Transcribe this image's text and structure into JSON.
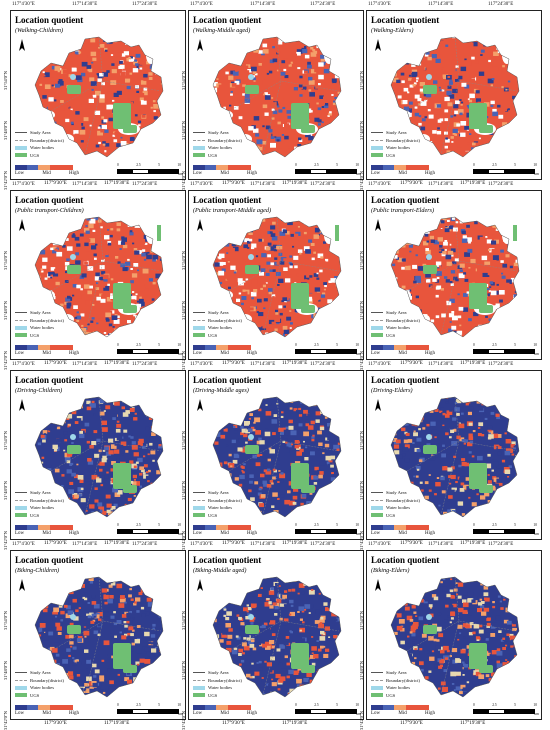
{
  "main_title": "Location quotient",
  "panels": [
    {
      "subtitle": "(Walking-Children)",
      "variant": "walk"
    },
    {
      "subtitle": "(Walking-Middle aged)",
      "variant": "walk"
    },
    {
      "subtitle": "(Walking-Elders)",
      "variant": "walk"
    },
    {
      "subtitle": "(Public transport-Children)",
      "variant": "pt"
    },
    {
      "subtitle": "(Public transport-Middle aged)",
      "variant": "pt"
    },
    {
      "subtitle": "(Public transport-Elders)",
      "variant": "pt"
    },
    {
      "subtitle": "(Driving-Children)",
      "variant": "drive"
    },
    {
      "subtitle": "(Driving-Middle ages)",
      "variant": "drive"
    },
    {
      "subtitle": "(Driving-Elders)",
      "variant": "drive"
    },
    {
      "subtitle": "(Biking-Children)",
      "variant": "bike"
    },
    {
      "subtitle": "(Biking-Middle aged)",
      "variant": "bike"
    },
    {
      "subtitle": "(Biking-Elders)",
      "variant": "bike"
    }
  ],
  "lon_labels": [
    "117°4'30\"E",
    "117°14'30\"E",
    "117°24'30\"E"
  ],
  "lon_labels_bottom": [
    "117°9'30\"E",
    "117°19'30\"E"
  ],
  "lat_labels": [
    "31°54'0\"N",
    "31°48'0\"N",
    "31°42'0\"N"
  ],
  "legend": {
    "study_area": "Study Area",
    "boundary": "Boundary(district)",
    "water": "Water bodies",
    "ugs": "UGS",
    "low": "Low",
    "mid": "Mid",
    "high": "High"
  },
  "scale": [
    "0",
    "2.5",
    "5",
    "10"
  ],
  "scale_unit": "km",
  "colors": {
    "low": "#2f3d8f",
    "low_mid": "#4a63b5",
    "mid": "#e8d9b0",
    "mid_high": "#f4a06a",
    "high": "#e8553c",
    "ugs": "#6fbf73",
    "water": "#9fd8ea",
    "boundary": "#888888"
  }
}
